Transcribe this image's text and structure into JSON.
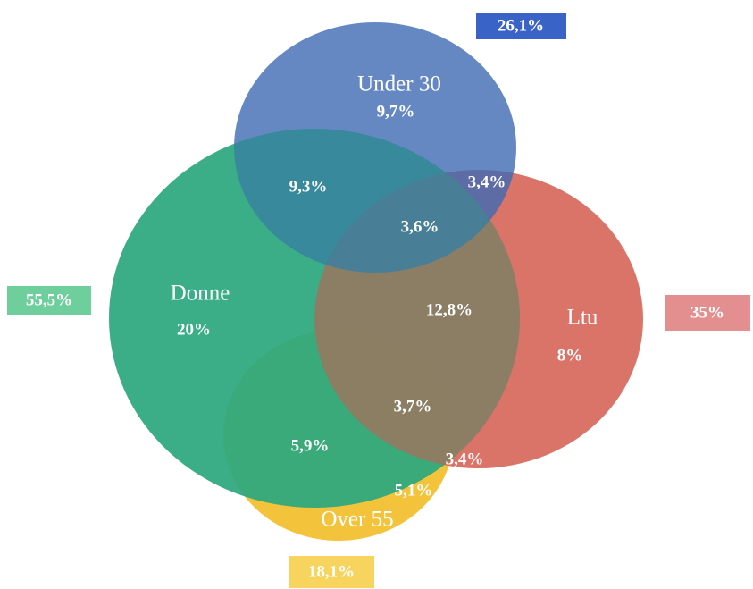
{
  "sets": [
    {
      "name": "Under 30",
      "total": "26,1%",
      "only": "9,7%"
    },
    {
      "name": "Donne",
      "total": "55,5%",
      "only": "20%"
    },
    {
      "name": "Ltu",
      "total": "35%",
      "only": "8%"
    },
    {
      "name": "Over 55",
      "total": "18,1%",
      "only": null
    }
  ],
  "intersections": [
    {
      "sets": [
        "Under 30",
        "Donne"
      ],
      "value": "9,3%"
    },
    {
      "sets": [
        "Under 30",
        "Ltu"
      ],
      "value": "3,4%"
    },
    {
      "sets": [
        "Under 30",
        "Donne",
        "Ltu"
      ],
      "value": "3,6%"
    },
    {
      "sets": [
        "Donne",
        "Ltu"
      ],
      "value": "12,8%"
    },
    {
      "sets": [
        "Donne",
        "Ltu",
        "Over 55"
      ],
      "value": "3,7%"
    },
    {
      "sets": [
        "Donne",
        "Over 55"
      ],
      "value": "5,9%"
    },
    {
      "sets": [
        "Ltu",
        "Over 55"
      ],
      "value": "3,4%"
    },
    {
      "sets": [
        "Over 55"
      ],
      "value": "5,1%"
    }
  ]
}
